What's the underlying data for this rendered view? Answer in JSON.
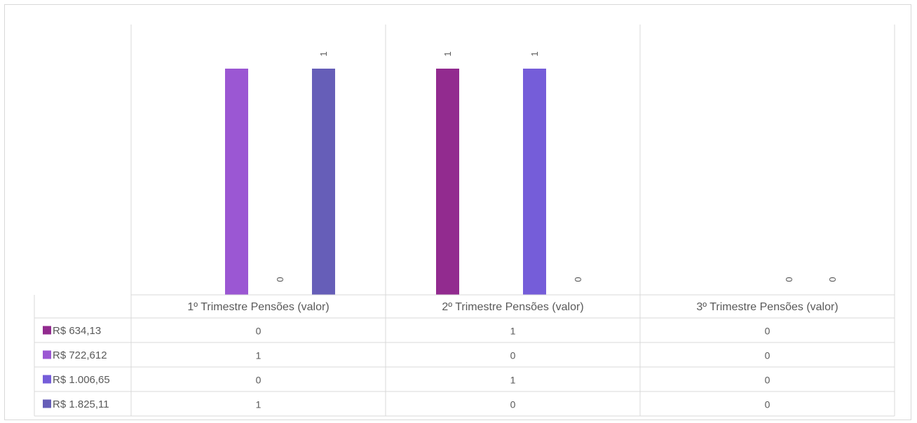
{
  "chart_data": {
    "type": "bar",
    "title": "",
    "xlabel": "",
    "ylabel": "",
    "ylim": [
      0,
      1
    ],
    "grid": false,
    "legend": "data-table-left",
    "categories": [
      "1º Trimestre Pensões (valor)",
      "2º Trimestre Pensões (valor)",
      "3º Trimestre Pensões (valor)"
    ],
    "series": [
      {
        "name": "R$ 634,13",
        "color": "#922b8f",
        "values": [
          0,
          1,
          0
        ]
      },
      {
        "name": "R$ 722,612",
        "color": "#9b57d3",
        "values": [
          1,
          0,
          0
        ]
      },
      {
        "name": "R$ 1.006,65",
        "color": "#755dd9",
        "values": [
          0,
          1,
          0
        ]
      },
      {
        "name": "R$ 1.825,11",
        "color": "#665eb8",
        "values": [
          1,
          0,
          0
        ]
      }
    ],
    "data_labels": [
      [
        "",
        "1",
        ""
      ],
      [
        "",
        "",
        ""
      ],
      [
        "0",
        "1",
        "0"
      ],
      [
        "1",
        "0",
        "0"
      ]
    ],
    "table_values": [
      [
        "0",
        "1",
        "0"
      ],
      [
        "1",
        "0",
        "0"
      ],
      [
        "0",
        "1",
        "0"
      ],
      [
        "1",
        "0",
        "0"
      ]
    ]
  }
}
